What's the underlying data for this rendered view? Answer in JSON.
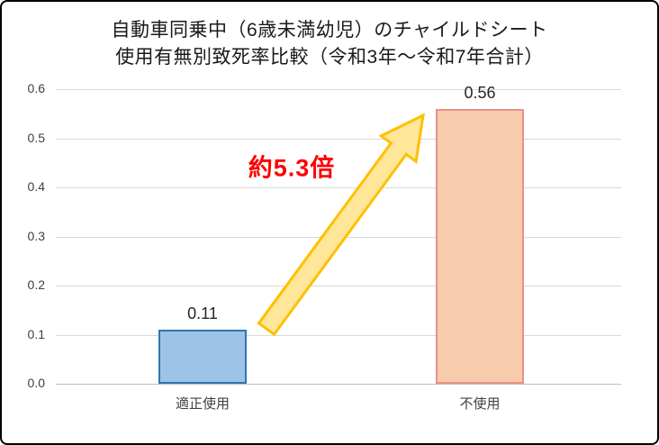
{
  "frame": {
    "background": "#ffffff",
    "border_color": "#000000"
  },
  "chart_data": {
    "type": "bar",
    "title_lines": [
      "自動車同乗中（6歳未満幼児）のチャイルドシート",
      "使用有無別致死率比較（令和3年～令和7年合計）"
    ],
    "categories": [
      "適正使用",
      "不使用"
    ],
    "values": [
      0.11,
      0.56
    ],
    "value_labels": [
      "0.11",
      "0.56"
    ],
    "bar_colors": [
      {
        "fill": "#9dc3e6",
        "border": "#2e75b6"
      },
      {
        "fill": "#f8cbad",
        "border": "#e8918a"
      }
    ],
    "xlabel": "",
    "ylabel": "",
    "ylim": [
      0,
      0.6
    ],
    "ytick_step": 0.1,
    "ytick_labels": [
      "0.0",
      "0.1",
      "0.2",
      "0.3",
      "0.4",
      "0.5",
      "0.6"
    ],
    "grid": true,
    "gridline_color": "#d9d9d9",
    "axis_line_color": "#bfbfbf",
    "legend": "none",
    "annotation": {
      "text": "約5.3倍",
      "color": "#ff0000"
    },
    "arrow": {
      "fill": "#ffe699",
      "stroke": "#ffc000"
    }
  }
}
